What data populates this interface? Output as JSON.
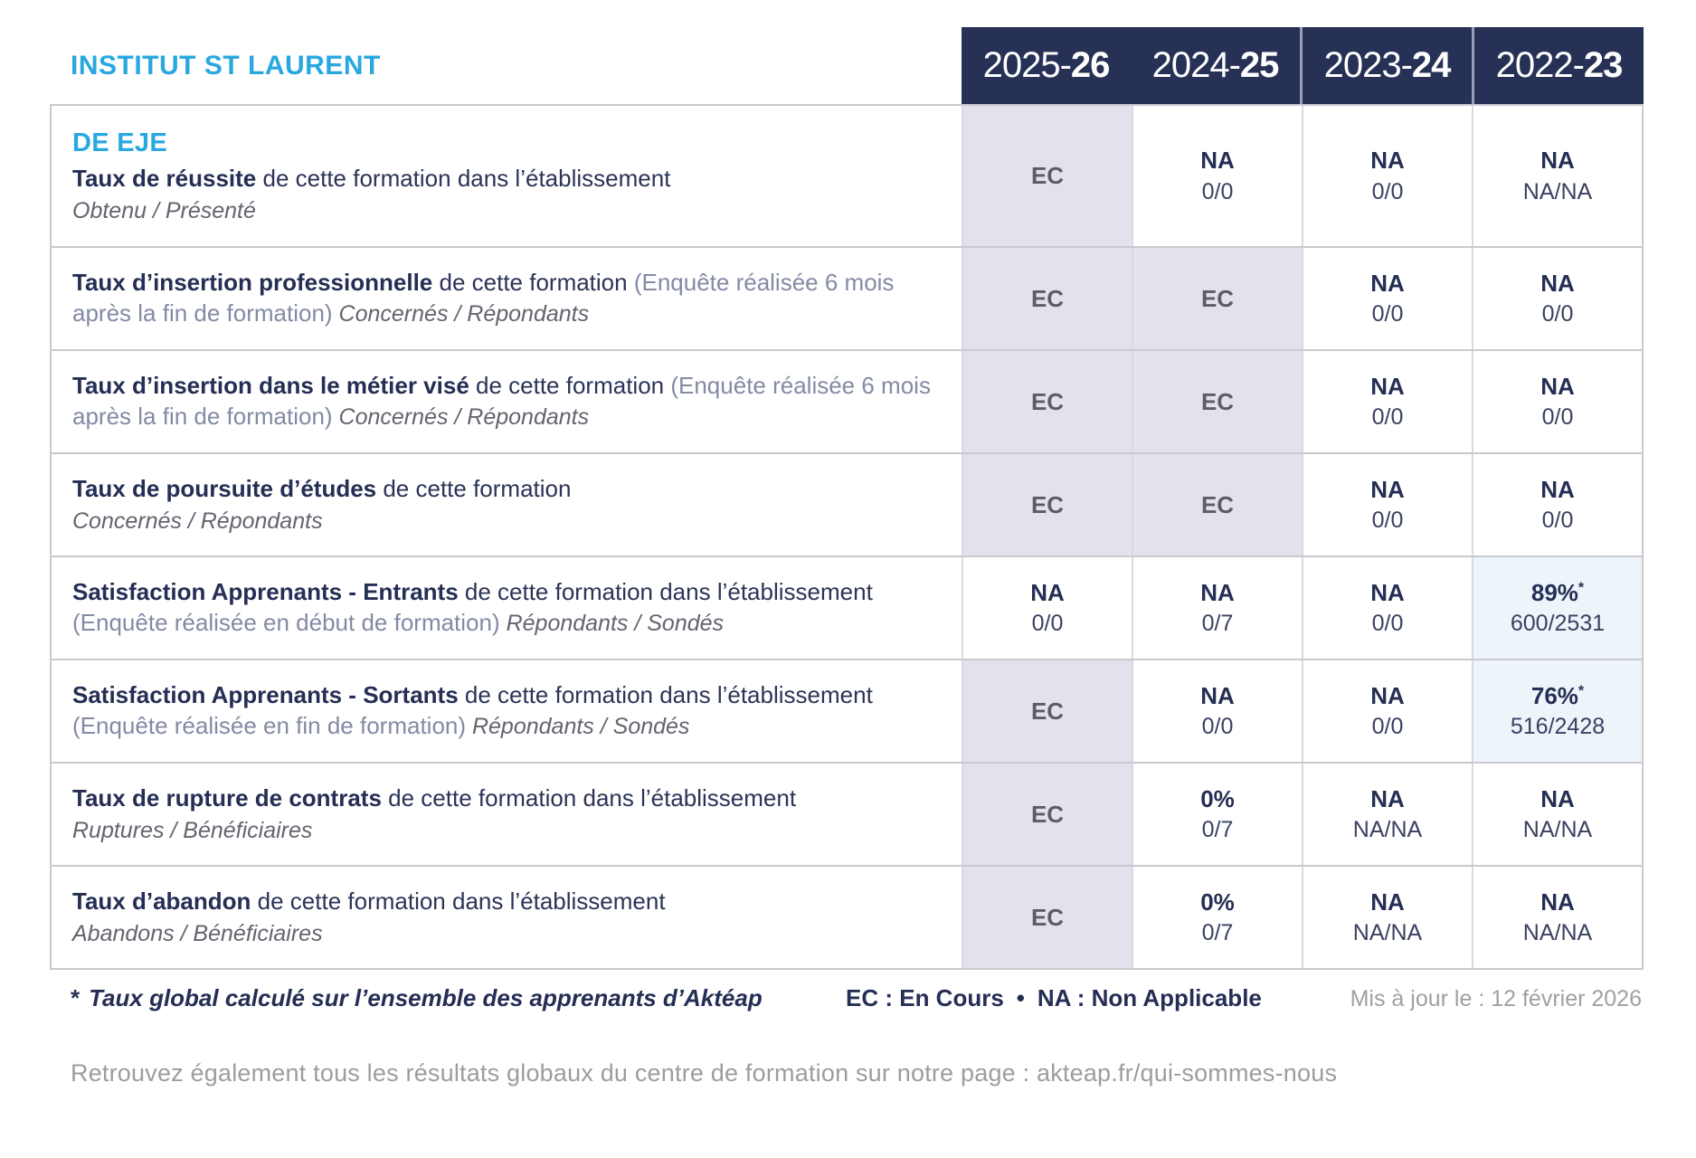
{
  "header": {
    "institution": "INSTITUT ST LAURENT",
    "years": [
      {
        "light": "2025-",
        "bold": "26"
      },
      {
        "light": "2024-",
        "bold": "25"
      },
      {
        "light": "2023-",
        "bold": "24"
      },
      {
        "light": "2022-",
        "bold": "23"
      }
    ]
  },
  "table": {
    "star_symbol": "*",
    "rows": [
      {
        "program": "DE EJE",
        "title": "Taux de réussite",
        "desc": "de cette formation dans l’établissement",
        "paren": "",
        "subtitle": "Obtenu / Présenté",
        "subtitle_inline": false,
        "values": [
          {
            "main": "EC",
            "sub": "",
            "style": "ec"
          },
          {
            "main": "NA",
            "sub": "0/0",
            "style": "plain"
          },
          {
            "main": "NA",
            "sub": "0/0",
            "style": "plain"
          },
          {
            "main": "NA",
            "sub": "NA/NA",
            "style": "plain"
          }
        ]
      },
      {
        "program": "",
        "title": "Taux d’insertion professionnelle",
        "desc": "de cette formation",
        "paren": "(Enquête réalisée 6 mois après la fin de formation)",
        "subtitle": "Concernés / Répondants",
        "subtitle_inline": true,
        "values": [
          {
            "main": "EC",
            "sub": "",
            "style": "ec"
          },
          {
            "main": "EC",
            "sub": "",
            "style": "ec"
          },
          {
            "main": "NA",
            "sub": "0/0",
            "style": "plain"
          },
          {
            "main": "NA",
            "sub": "0/0",
            "style": "plain"
          }
        ]
      },
      {
        "program": "",
        "title": "Taux d’insertion dans le métier visé",
        "desc": "de cette formation",
        "paren": "(Enquête réalisée 6 mois après la fin de formation)",
        "subtitle": "Concernés / Répondants",
        "subtitle_inline": true,
        "values": [
          {
            "main": "EC",
            "sub": "",
            "style": "ec"
          },
          {
            "main": "EC",
            "sub": "",
            "style": "ec"
          },
          {
            "main": "NA",
            "sub": "0/0",
            "style": "plain"
          },
          {
            "main": "NA",
            "sub": "0/0",
            "style": "plain"
          }
        ]
      },
      {
        "program": "",
        "title": "Taux de poursuite d’études",
        "desc": "de cette formation",
        "paren": "",
        "subtitle": "Concernés / Répondants",
        "subtitle_inline": false,
        "values": [
          {
            "main": "EC",
            "sub": "",
            "style": "ec"
          },
          {
            "main": "EC",
            "sub": "",
            "style": "ec"
          },
          {
            "main": "NA",
            "sub": "0/0",
            "style": "plain"
          },
          {
            "main": "NA",
            "sub": "0/0",
            "style": "plain"
          }
        ]
      },
      {
        "program": "",
        "title": "Satisfaction Apprenants - Entrants",
        "desc": "de cette formation dans l’établissement",
        "paren": "(Enquête réalisée en début de formation)",
        "subtitle": "Répondants / Sondés",
        "subtitle_inline": true,
        "values": [
          {
            "main": "NA",
            "sub": "0/0",
            "style": "plain"
          },
          {
            "main": "NA",
            "sub": "0/7",
            "style": "plain"
          },
          {
            "main": "NA",
            "sub": "0/0",
            "style": "plain"
          },
          {
            "main": "89%",
            "sub": "600/2531",
            "style": "highlight",
            "star": true
          }
        ]
      },
      {
        "program": "",
        "title": "Satisfaction Apprenants - Sortants",
        "desc": "de cette formation dans l’établissement",
        "paren": "(Enquête réalisée en fin de formation)",
        "subtitle": "Répondants / Sondés",
        "subtitle_inline": true,
        "values": [
          {
            "main": "EC",
            "sub": "",
            "style": "ec"
          },
          {
            "main": "NA",
            "sub": "0/0",
            "style": "plain"
          },
          {
            "main": "NA",
            "sub": "0/0",
            "style": "plain"
          },
          {
            "main": "76%",
            "sub": "516/2428",
            "style": "highlight",
            "star": true
          }
        ]
      },
      {
        "program": "",
        "title": "Taux de rupture de contrats",
        "desc": "de cette formation dans l’établissement",
        "paren": "",
        "subtitle": "Ruptures / Bénéficiaires",
        "subtitle_inline": false,
        "values": [
          {
            "main": "EC",
            "sub": "",
            "style": "ec"
          },
          {
            "main": "0%",
            "sub": "0/7",
            "style": "plain"
          },
          {
            "main": "NA",
            "sub": "NA/NA",
            "style": "plain"
          },
          {
            "main": "NA",
            "sub": "NA/NA",
            "style": "plain"
          }
        ]
      },
      {
        "program": "",
        "title": "Taux d’abandon",
        "desc": "de cette formation dans l’établissement",
        "paren": "",
        "subtitle": "Abandons / Bénéficiaires",
        "subtitle_inline": false,
        "values": [
          {
            "main": "EC",
            "sub": "",
            "style": "ec"
          },
          {
            "main": "0%",
            "sub": "0/7",
            "style": "plain"
          },
          {
            "main": "NA",
            "sub": "NA/NA",
            "style": "plain"
          },
          {
            "main": "NA",
            "sub": "NA/NA",
            "style": "plain"
          }
        ]
      }
    ]
  },
  "footer": {
    "footnote_star": "*",
    "footnote_text": "Taux global calculé sur l’ensemble des apprenants d’Aktéap",
    "legend": [
      "EC : En Cours",
      "NA : Non Applicable"
    ],
    "legend_separator": "•",
    "updated": "Mis à jour le : 12 février 2026",
    "bottom_note": "Retrouvez également tous les résultats globaux du centre de formation sur notre page : akteap.fr/qui-sommes-nous"
  },
  "colors": {
    "brand": "#29a8e0",
    "navy": "#252e54",
    "header_bg": "#273156",
    "ec_bg": "#e3e2ec",
    "ec_text": "#5d5d61",
    "highlight_bg": "#edf4fa",
    "paren_gray": "#838aa4",
    "subtitle_gray": "#63656f",
    "muted_gray": "#a0a0a2"
  }
}
